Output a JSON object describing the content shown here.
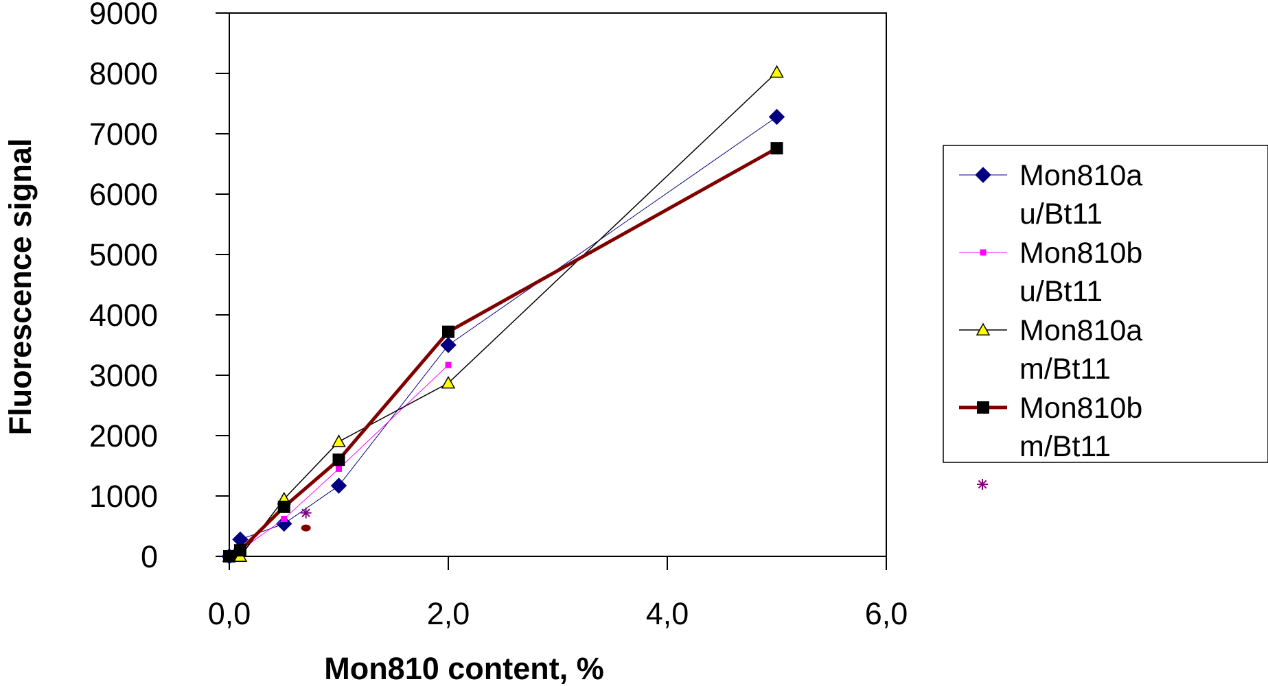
{
  "chart_data": {
    "type": "line",
    "xlabel": "Mon810 content, %",
    "ylabel": "Fluorescence signal",
    "xlim": [
      0,
      6
    ],
    "ylim": [
      0,
      9000
    ],
    "xticks": [
      "0,0",
      "2,0",
      "4,0",
      "6,0"
    ],
    "yticks": [
      "0",
      "1000",
      "2000",
      "3000",
      "4000",
      "5000",
      "6000",
      "7000",
      "8000",
      "9000"
    ],
    "grid": false,
    "legend_position": "right",
    "series": [
      {
        "name": "Mon810au/Bt11",
        "legend_lines": [
          "Mon810a",
          "u/Bt11"
        ],
        "color": "#000080",
        "marker": "diamond",
        "points": [
          [
            0.0,
            0
          ],
          [
            0.1,
            280
          ],
          [
            0.5,
            540
          ],
          [
            1.0,
            1170
          ],
          [
            2.0,
            3500
          ],
          [
            5.0,
            7280
          ]
        ]
      },
      {
        "name": "Mon810bu/Bt11",
        "legend_lines": [
          "Mon810b",
          "u/Bt11"
        ],
        "color": "#ff00ff",
        "marker": "square-small",
        "points": [
          [
            0.0,
            0
          ],
          [
            0.1,
            100
          ],
          [
            0.5,
            620
          ],
          [
            1.0,
            1450
          ],
          [
            2.0,
            3170
          ]
        ]
      },
      {
        "name": "Mon810am/Bt11",
        "legend_lines": [
          "Mon810a",
          "m/Bt11"
        ],
        "color": "#000000",
        "marker": "triangle",
        "points": [
          [
            0.0,
            0
          ],
          [
            0.1,
            0
          ],
          [
            0.5,
            950
          ],
          [
            1.0,
            1900
          ],
          [
            2.0,
            2870
          ],
          [
            5.0,
            8020
          ]
        ]
      },
      {
        "name": "Mon810bm/Bt11",
        "legend_lines": [
          "Mon810b",
          "m/Bt11"
        ],
        "color": "#800000",
        "marker": "square",
        "points": [
          [
            0.0,
            0
          ],
          [
            0.1,
            100
          ],
          [
            0.5,
            820
          ],
          [
            1.0,
            1600
          ],
          [
            2.0,
            3720
          ],
          [
            5.0,
            6760
          ]
        ]
      }
    ],
    "extra_points": [
      {
        "marker": "star",
        "color": "#800080",
        "x": 0.7,
        "y": 720
      },
      {
        "marker": "circle",
        "color": "#800000",
        "x": 0.7,
        "y": 470
      }
    ]
  }
}
